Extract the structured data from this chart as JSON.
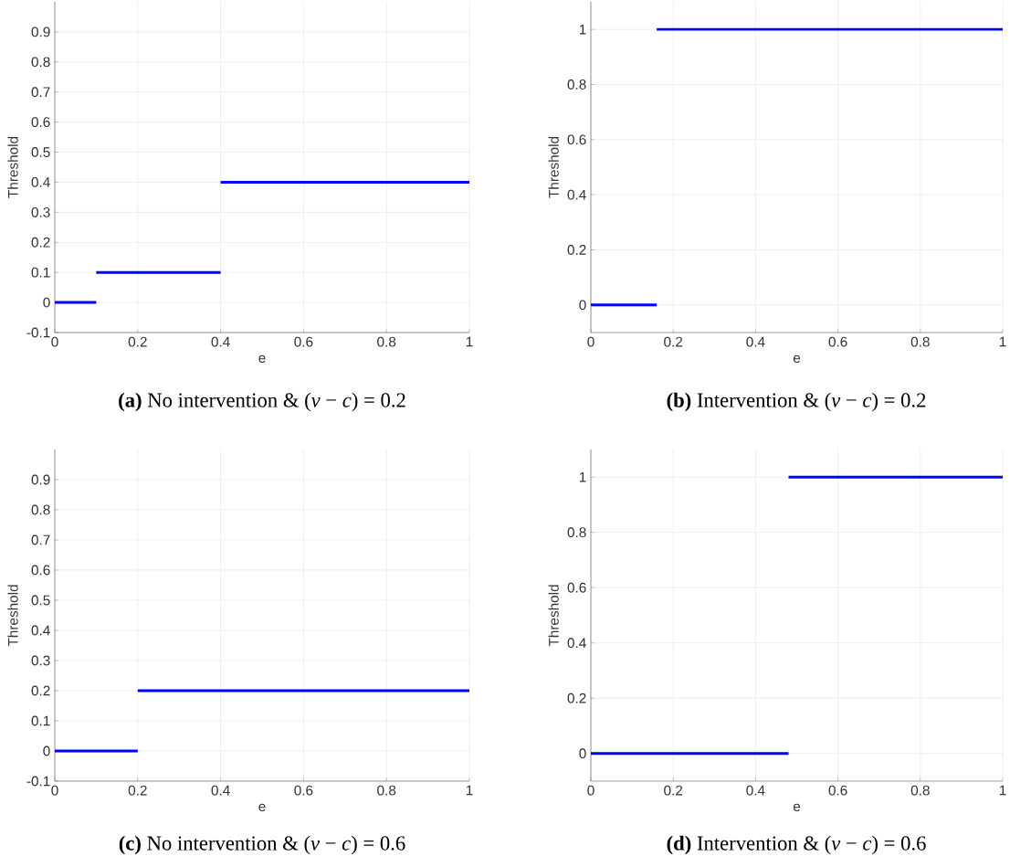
{
  "chart_data": [
    {
      "type": "line",
      "xlabel": "e",
      "ylabel": "Threshold",
      "xlim": [
        0,
        1
      ],
      "ylim": [
        -0.1,
        1.0
      ],
      "xticks": [
        0,
        0.2,
        0.4,
        0.6,
        0.8,
        1
      ],
      "yticks": [
        -0.1,
        0,
        0.1,
        0.2,
        0.3,
        0.4,
        0.5,
        0.6,
        0.7,
        0.8,
        0.9
      ],
      "grid": true,
      "annotations": [
        "**(a)** No intervention & (*v* − *c*) = 0.2"
      ],
      "series": [
        {
          "color": "#0000ff",
          "x": [
            0,
            0.1
          ],
          "values": [
            0,
            0
          ]
        },
        {
          "color": "#0000ff",
          "x": [
            0.1,
            0.4
          ],
          "values": [
            0.1,
            0.1
          ]
        },
        {
          "color": "#0000ff",
          "x": [
            0.4,
            1
          ],
          "values": [
            0.4,
            0.4
          ]
        }
      ]
    },
    {
      "type": "line",
      "xlabel": "e",
      "ylabel": "Threshold",
      "xlim": [
        0,
        1
      ],
      "ylim": [
        -0.1,
        1.1
      ],
      "xticks": [
        0,
        0.2,
        0.4,
        0.6,
        0.8,
        1
      ],
      "yticks": [
        0,
        0.2,
        0.4,
        0.6,
        0.8,
        1
      ],
      "grid": true,
      "annotations": [
        "**(b)** Intervention & (*v* − *c*) = 0.2"
      ],
      "series": [
        {
          "color": "#0000ff",
          "x": [
            0,
            0.16
          ],
          "values": [
            0,
            0
          ]
        },
        {
          "color": "#0000ff",
          "x": [
            0.16,
            1
          ],
          "values": [
            1,
            1
          ]
        }
      ]
    },
    {
      "type": "line",
      "xlabel": "e",
      "ylabel": "Threshold",
      "xlim": [
        0,
        1
      ],
      "ylim": [
        -0.1,
        1.0
      ],
      "xticks": [
        0,
        0.2,
        0.4,
        0.6,
        0.8,
        1
      ],
      "yticks": [
        -0.1,
        0,
        0.1,
        0.2,
        0.3,
        0.4,
        0.5,
        0.6,
        0.7,
        0.8,
        0.9
      ],
      "grid": true,
      "annotations": [
        "**(c)** No intervention & (*v* − *c*) = 0.6"
      ],
      "series": [
        {
          "color": "#0000ff",
          "x": [
            0,
            0.2
          ],
          "values": [
            0,
            0
          ]
        },
        {
          "color": "#0000ff",
          "x": [
            0.2,
            1
          ],
          "values": [
            0.2,
            0.2
          ]
        }
      ]
    },
    {
      "type": "line",
      "xlabel": "e",
      "ylabel": "Threshold",
      "xlim": [
        0,
        1
      ],
      "ylim": [
        -0.1,
        1.1
      ],
      "xticks": [
        0,
        0.2,
        0.4,
        0.6,
        0.8,
        1
      ],
      "yticks": [
        0,
        0.2,
        0.4,
        0.6,
        0.8,
        1
      ],
      "grid": true,
      "annotations": [
        "**(d)** Intervention & (*v* − *c*) = 0.6"
      ],
      "series": [
        {
          "color": "#0000ff",
          "x": [
            0,
            0.48
          ],
          "values": [
            0,
            0
          ]
        },
        {
          "color": "#0000ff",
          "x": [
            0.48,
            1
          ],
          "values": [
            1,
            1
          ]
        }
      ]
    }
  ]
}
